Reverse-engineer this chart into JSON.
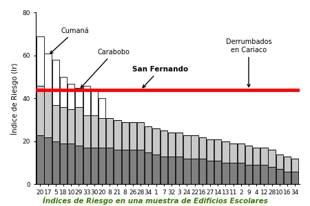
{
  "categories": [
    "20",
    "17",
    "5",
    "18",
    "10",
    "29",
    "33",
    "30",
    "20",
    "8",
    "21",
    "8",
    "26",
    "28",
    "34",
    "1",
    "7",
    "32",
    "3",
    "24",
    "22",
    "16",
    "27",
    "14",
    "13",
    "11",
    "2",
    "9",
    "4",
    "12",
    "28",
    "10",
    "16",
    "34"
  ],
  "bottom_vals": [
    23,
    22,
    20,
    19,
    19,
    18,
    17,
    17,
    17,
    17,
    16,
    16,
    16,
    16,
    15,
    14,
    13,
    13,
    13,
    12,
    12,
    12,
    11,
    11,
    10,
    10,
    10,
    9,
    9,
    9,
    8,
    7,
    6,
    6
  ],
  "mid_vals": [
    23,
    22,
    17,
    17,
    16,
    18,
    15,
    15,
    14,
    14,
    14,
    13,
    13,
    13,
    12,
    12,
    12,
    11,
    11,
    11,
    11,
    10,
    10,
    10,
    10,
    9,
    9,
    9,
    8,
    8,
    8,
    7,
    7,
    6
  ],
  "top_vals": [
    23,
    17,
    21,
    14,
    12,
    9,
    14,
    12,
    9,
    0,
    0,
    0,
    0,
    0,
    0,
    0,
    0,
    0,
    0,
    0,
    0,
    0,
    0,
    0,
    0,
    0,
    0,
    0,
    0,
    0,
    0,
    0,
    0,
    0
  ],
  "hline_y": 44,
  "ylabel": "Índice de Riesgo (Ir)",
  "ylim": [
    0,
    80
  ],
  "yticks": [
    0,
    20,
    40,
    60,
    80
  ],
  "color_bottom": "#808080",
  "color_mid": "#c8c8c8",
  "color_top": "#ffffff",
  "hline_color": "#ff0000",
  "hline_lw": 3.5,
  "annotation_cumana": "Cumaná",
  "annotation_carabobo": "Carabobo",
  "annotation_san_fernando": "San Fernando",
  "annotation_derrumbados": "Derrumbados\nen Cariaco",
  "title_caption": "Índices de Riesgo en una muestra de Edificios Escolares\nsuponiendo localizaciones en lugares distintos.",
  "caption_color": "#3a7a00",
  "bar_edge_color": "#000000",
  "bar_linewidth": 0.6,
  "bar_width": 0.92
}
